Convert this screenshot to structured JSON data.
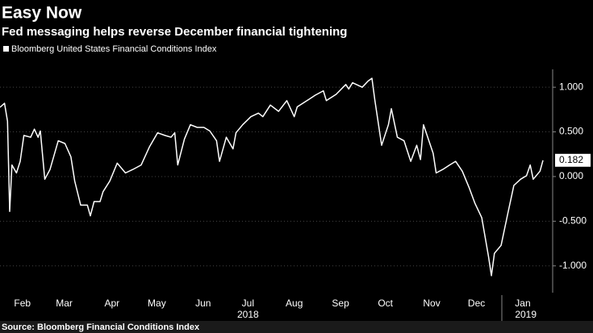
{
  "chart_data": {
    "type": "line",
    "title": "Easy Now",
    "subtitle": "Fed messaging helps reverse December financial tightening",
    "source": "Source: Bloomberg Financial Conditions Index",
    "series": [
      {
        "name": "Bloomberg United States Financial Conditions Index",
        "color": "#ffffff",
        "x": [
          30,
          33,
          35,
          36.5,
          38,
          41,
          43.5,
          46,
          50.5,
          53,
          55.5,
          57,
          60,
          63.5,
          69,
          73.5,
          77.5,
          80,
          84,
          88.5,
          90.5,
          93,
          97,
          99,
          103.5,
          108.5,
          114,
          119,
          124.5,
          130,
          135.5,
          140.5,
          144.5,
          147,
          149,
          153.5,
          157.5,
          162,
          166.5,
          170.5,
          175,
          177,
          181.5,
          186,
          188,
          192.5,
          198,
          203,
          206,
          211,
          216.5,
          222,
          227,
          229,
          235.5,
          241,
          246.5,
          248.5,
          255,
          261.5,
          263.5,
          266,
          272.5,
          276.5,
          279,
          281,
          285.5,
          290,
          292,
          296,
          300.5,
          305,
          309,
          311.5,
          313.5,
          320,
          322,
          326.5,
          331,
          335,
          339.5,
          344,
          348,
          352.5,
          357,
          359,
          361,
          365.5,
          370,
          374,
          378.5,
          382.5,
          385,
          387,
          391.5,
          393.5
        ],
        "values": [
          0.775,
          0.82,
          0.62,
          -0.39,
          0.13,
          0.04,
          0.17,
          0.46,
          0.44,
          0.53,
          0.44,
          0.51,
          -0.03,
          0.08,
          0.4,
          0.37,
          0.22,
          -0.05,
          -0.32,
          -0.32,
          -0.44,
          -0.28,
          -0.28,
          -0.17,
          -0.05,
          0.15,
          0.04,
          0.08,
          0.13,
          0.33,
          0.49,
          0.46,
          0.44,
          0.49,
          0.13,
          0.42,
          0.58,
          0.55,
          0.55,
          0.51,
          0.4,
          0.17,
          0.44,
          0.31,
          0.49,
          0.58,
          0.67,
          0.71,
          0.67,
          0.8,
          0.73,
          0.85,
          0.67,
          0.78,
          0.85,
          0.91,
          0.96,
          0.85,
          0.92,
          1.03,
          0.98,
          1.05,
          1.0,
          1.07,
          1.1,
          0.85,
          0.35,
          0.58,
          0.76,
          0.44,
          0.4,
          0.17,
          0.35,
          0.19,
          0.58,
          0.26,
          0.04,
          0.08,
          0.13,
          0.17,
          0.06,
          -0.12,
          -0.3,
          -0.46,
          -0.89,
          -1.11,
          -0.86,
          -0.77,
          -0.41,
          -0.1,
          -0.03,
          0.01,
          0.13,
          -0.03,
          0.06,
          0.182
        ]
      }
    ],
    "xlim": [
      30,
      400
    ],
    "xticks": [
      {
        "value": 45,
        "label": "Feb"
      },
      {
        "value": 73,
        "label": "Mar"
      },
      {
        "value": 105,
        "label": "Apr"
      },
      {
        "value": 135,
        "label": "May"
      },
      {
        "value": 166,
        "label": "Jun"
      },
      {
        "value": 196,
        "label": "Jul"
      },
      {
        "value": 227,
        "label": "Aug"
      },
      {
        "value": 258,
        "label": "Sep"
      },
      {
        "value": 288,
        "label": "Oct"
      },
      {
        "value": 319,
        "label": "Nov"
      },
      {
        "value": 349,
        "label": "Dec"
      },
      {
        "value": 380,
        "label": "Jan"
      }
    ],
    "year_labels": [
      {
        "value": 196,
        "label": "2018"
      },
      {
        "value": 382,
        "label": "2019"
      }
    ],
    "ylim": [
      -1.3,
      1.2
    ],
    "yticks": [
      {
        "value": 1,
        "label": "1.000"
      },
      {
        "value": 0.5,
        "label": "0.500"
      },
      {
        "value": 0,
        "label": "0.000"
      },
      {
        "value": -0.5,
        "label": "-0.500"
      },
      {
        "value": -1,
        "label": "-1.000"
      }
    ],
    "grid": true
  }
}
